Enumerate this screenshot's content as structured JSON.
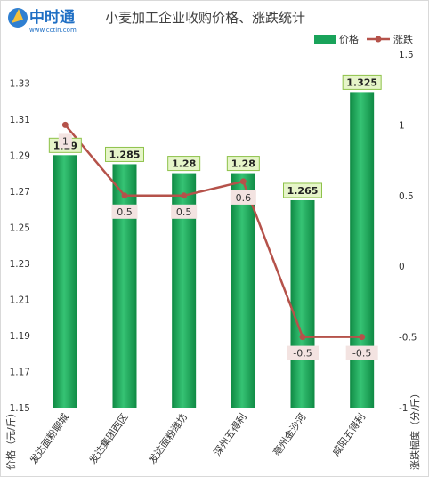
{
  "logo": {
    "name": "中时通",
    "url": "www.cctin.com"
  },
  "title": "小麦加工企业收购价格、涨跌统计",
  "colors": {
    "bar": "#19a35a",
    "line": "#b5524a",
    "label_box": "#e6f5c9",
    "label_border": "#8ec24a",
    "chg_box": "#f3e3e1"
  },
  "chart_data": {
    "type": "bar",
    "title": "小麦加工企业收购价格、涨跌统计",
    "categories": [
      "发达面粉聊城",
      "发达集团西区",
      "发达面粉潍坊",
      "深州五得利",
      "亳州金沙河",
      "咸阳五得利"
    ],
    "series": [
      {
        "name": "价格",
        "type": "bar",
        "axis": "left",
        "values": [
          1.29,
          1.285,
          1.28,
          1.28,
          1.265,
          1.325
        ]
      },
      {
        "name": "涨跌",
        "type": "line",
        "axis": "right",
        "values": [
          1,
          0.5,
          0.5,
          0.6,
          -0.5,
          -0.5
        ]
      }
    ],
    "data_labels": {
      "price": [
        "1.29",
        "1.285",
        "1.28",
        "1.28",
        "1.265",
        "1.325"
      ],
      "change": [
        "1",
        "0.5",
        "0.5",
        "0.6",
        "-0.5",
        "-0.5"
      ]
    },
    "ylabel": "价格（元/斤）",
    "ylabel_right": "涨跌幅度（分/斤）",
    "ylim": [
      1.15,
      1.34
    ],
    "y_ticks": [
      "1.15",
      "1.17",
      "1.19",
      "1.21",
      "1.23",
      "1.25",
      "1.27",
      "1.29",
      "1.31",
      "1.33"
    ],
    "ylim_right": [
      -1,
      1.5
    ],
    "y_ticks_right": [
      "-1",
      "-0.5",
      "0",
      "0.5",
      "1",
      "1.5"
    ],
    "legend": [
      "价格",
      "涨跌"
    ],
    "legend_position": "top-right",
    "grid": false
  }
}
